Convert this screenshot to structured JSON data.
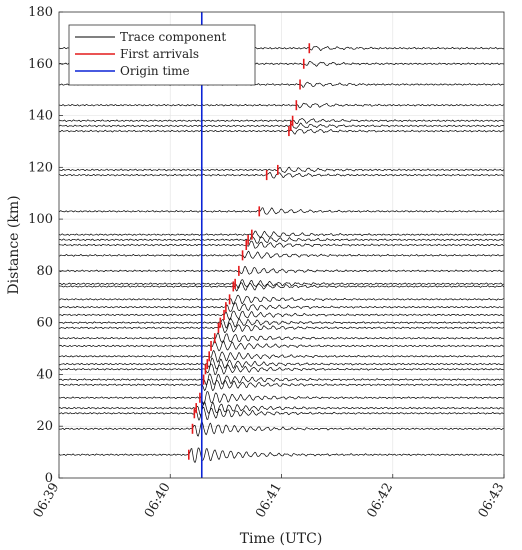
{
  "chart_data": {
    "type": "line",
    "xlabel": "Time (UTC)",
    "ylabel": "Distance (km)",
    "x_ticks": [
      "06:39",
      "06:40",
      "06:41",
      "06:42",
      "06:43"
    ],
    "y_ticks": [
      0,
      20,
      40,
      60,
      80,
      100,
      120,
      140,
      160,
      180
    ],
    "xlim": [
      "06:39",
      "06:43"
    ],
    "ylim": [
      0,
      180
    ],
    "grid": true,
    "legend_position": "top-left",
    "legend": [
      {
        "label": "Trace component",
        "color": "#000000"
      },
      {
        "label": "First arrivals",
        "color": "#e41a1c"
      },
      {
        "label": "Origin time",
        "color": "#0b24d6"
      }
    ],
    "origin_time": "06:40:17",
    "traces": [
      {
        "distance": 9,
        "first_arrival": "06:40:10"
      },
      {
        "distance": 19,
        "first_arrival": "06:40:12"
      },
      {
        "distance": 25,
        "first_arrival": "06:40:13"
      },
      {
        "distance": 27,
        "first_arrival": "06:40:14"
      },
      {
        "distance": 31,
        "first_arrival": "06:40:16"
      },
      {
        "distance": 36,
        "first_arrival": "06:40:17"
      },
      {
        "distance": 38,
        "first_arrival": "06:40:18"
      },
      {
        "distance": 42,
        "first_arrival": "06:40:19"
      },
      {
        "distance": 44,
        "first_arrival": "06:40:20"
      },
      {
        "distance": 47,
        "first_arrival": "06:40:21"
      },
      {
        "distance": 51,
        "first_arrival": "06:40:22"
      },
      {
        "distance": 54,
        "first_arrival": "06:40:24"
      },
      {
        "distance": 58,
        "first_arrival": "06:40:26"
      },
      {
        "distance": 60,
        "first_arrival": "06:40:27"
      },
      {
        "distance": 63,
        "first_arrival": "06:40:29"
      },
      {
        "distance": 66,
        "first_arrival": "06:40:30"
      },
      {
        "distance": 69,
        "first_arrival": "06:40:32"
      },
      {
        "distance": 74,
        "first_arrival": "06:40:34"
      },
      {
        "distance": 75,
        "first_arrival": "06:40:35"
      },
      {
        "distance": 80,
        "first_arrival": "06:40:37"
      },
      {
        "distance": 86,
        "first_arrival": "06:40:39"
      },
      {
        "distance": 90,
        "first_arrival": "06:40:41"
      },
      {
        "distance": 92,
        "first_arrival": "06:40:42"
      },
      {
        "distance": 94,
        "first_arrival": "06:40:44"
      },
      {
        "distance": 103,
        "first_arrival": "06:40:48"
      },
      {
        "distance": 117,
        "first_arrival": "06:40:52"
      },
      {
        "distance": 119,
        "first_arrival": "06:40:58"
      },
      {
        "distance": 134,
        "first_arrival": "06:41:04"
      },
      {
        "distance": 136,
        "first_arrival": "06:41:05"
      },
      {
        "distance": 138,
        "first_arrival": "06:41:06"
      },
      {
        "distance": 144,
        "first_arrival": "06:41:08"
      },
      {
        "distance": 152,
        "first_arrival": "06:41:10"
      },
      {
        "distance": 160,
        "first_arrival": "06:41:12"
      },
      {
        "distance": 166,
        "first_arrival": "06:41:15"
      }
    ]
  }
}
